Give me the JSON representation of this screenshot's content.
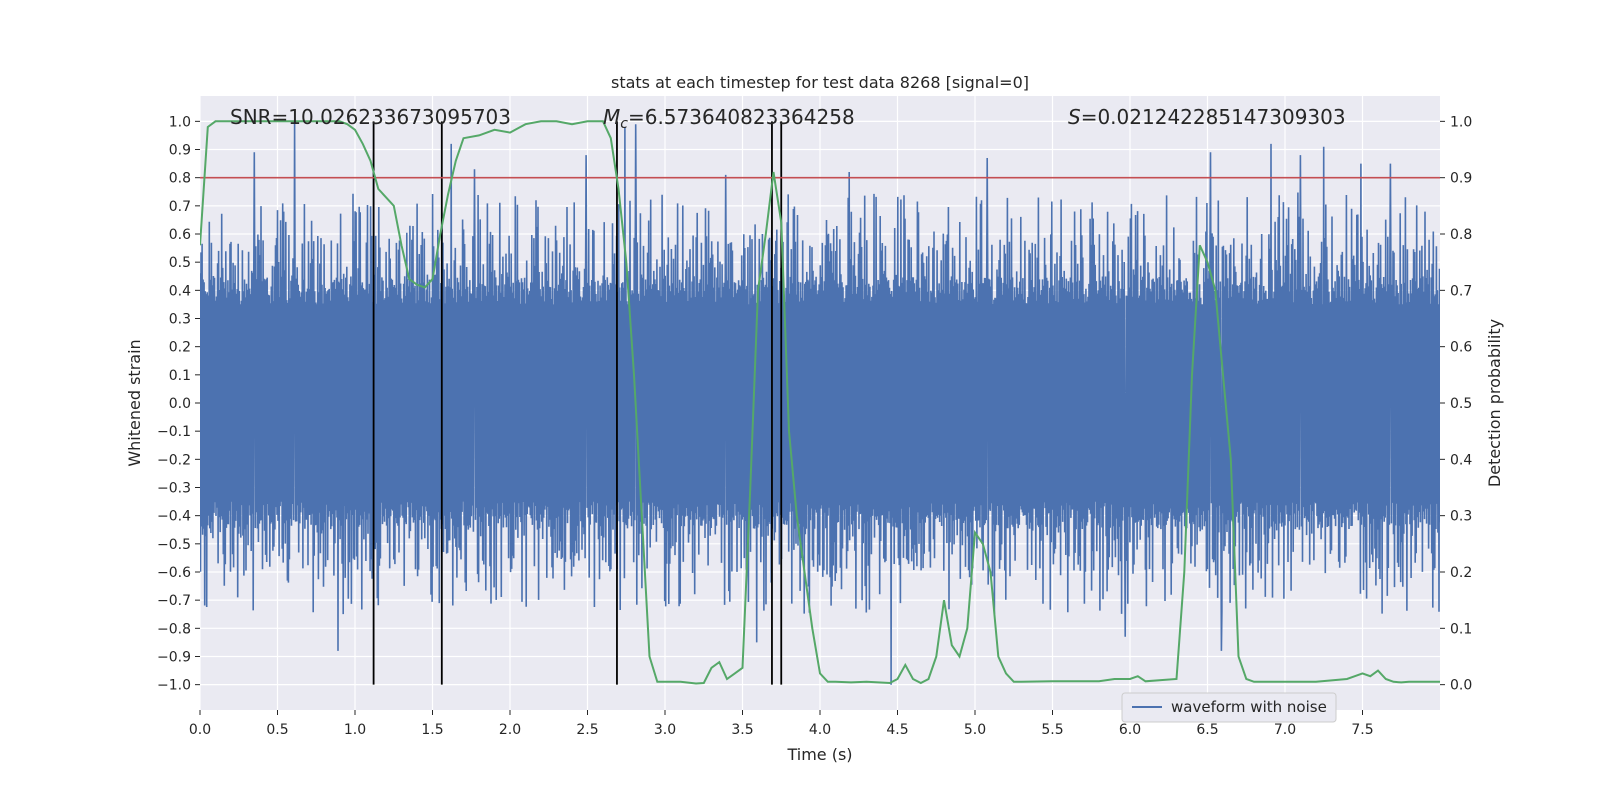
{
  "chart_data": {
    "type": "line",
    "title": "stats at each timestep for test data 8268 [signal=0]",
    "xlabel": "Time (s)",
    "ylabel_left": "Whitened strain",
    "ylabel_right": "Detection probability",
    "xlim": [
      0,
      8.0
    ],
    "ylim_left": [
      -1.09,
      1.09
    ],
    "ylim_right": [
      -0.045,
      1.045
    ],
    "x_ticks": [
      "0.0",
      "0.5",
      "1.0",
      "1.5",
      "2.0",
      "2.5",
      "3.0",
      "3.5",
      "4.0",
      "4.5",
      "5.0",
      "5.5",
      "6.0",
      "6.5",
      "7.0",
      "7.5"
    ],
    "y_ticks_left": [
      "1.0",
      "0.9",
      "0.8",
      "0.7",
      "0.6",
      "0.5",
      "0.4",
      "0.3",
      "0.2",
      "0.1",
      "0.0",
      "−0.1",
      "−0.2",
      "−0.3",
      "−0.4",
      "−0.5",
      "−0.6",
      "−0.7",
      "−0.8",
      "−0.9",
      "−1.0"
    ],
    "y_ticks_right": [
      "1.0",
      "0.9",
      "0.8",
      "0.7",
      "0.6",
      "0.5",
      "0.4",
      "0.3",
      "0.2",
      "0.1",
      "0.0"
    ],
    "annotations": {
      "snr": "SNR=10.026233673095703",
      "mc_symbol": "M",
      "mc_sub": "c",
      "mc_value": "=6.573640823364258",
      "s_symbol": "S",
      "s_value": "=0.021242285147309303"
    },
    "threshold_line": {
      "y_left": 0.8,
      "color": "#c44e52"
    },
    "vertical_lines_x": [
      1.12,
      1.56,
      2.69,
      3.69,
      3.75
    ],
    "legend": {
      "position": "lower-right",
      "entries": [
        "waveform with noise"
      ]
    },
    "grid": true,
    "series": [
      {
        "name": "waveform with noise",
        "color": "#4c72b0",
        "axis": "left",
        "style": "dense noise, envelope roughly ±0.4 with spikes up to ±1.0",
        "spikes": [
          {
            "x": 0.35,
            "y": 0.89
          },
          {
            "x": 0.61,
            "y": 1.0
          },
          {
            "x": 0.89,
            "y": -0.88
          },
          {
            "x": 1.12,
            "y": 0.89
          },
          {
            "x": 1.62,
            "y": 0.92
          },
          {
            "x": 1.77,
            "y": 0.83
          },
          {
            "x": 2.49,
            "y": 0.88
          },
          {
            "x": 2.74,
            "y": 0.98
          },
          {
            "x": 2.81,
            "y": 0.99
          },
          {
            "x": 3.39,
            "y": 0.81
          },
          {
            "x": 3.59,
            "y": -0.85
          },
          {
            "x": 4.19,
            "y": 0.82
          },
          {
            "x": 4.46,
            "y": -1.0
          },
          {
            "x": 5.08,
            "y": 0.87
          },
          {
            "x": 5.97,
            "y": -0.83
          },
          {
            "x": 6.52,
            "y": 0.89
          },
          {
            "x": 6.59,
            "y": -0.88
          },
          {
            "x": 6.91,
            "y": 0.92
          },
          {
            "x": 7.1,
            "y": 0.88
          },
          {
            "x": 7.25,
            "y": 0.91
          },
          {
            "x": 7.49,
            "y": 0.85
          },
          {
            "x": 7.68,
            "y": 0.85
          }
        ]
      },
      {
        "name": "",
        "color": "#55a868",
        "axis": "right",
        "x": [
          0.0,
          0.05,
          0.1,
          0.3,
          0.6,
          0.9,
          0.95,
          1.0,
          1.05,
          1.1,
          1.15,
          1.25,
          1.3,
          1.35,
          1.4,
          1.45,
          1.5,
          1.55,
          1.6,
          1.65,
          1.7,
          1.8,
          1.9,
          2.0,
          2.1,
          2.2,
          2.3,
          2.4,
          2.5,
          2.6,
          2.65,
          2.7,
          2.75,
          2.8,
          2.85,
          2.9,
          2.95,
          3.0,
          3.1,
          3.2,
          3.25,
          3.3,
          3.35,
          3.4,
          3.45,
          3.5,
          3.55,
          3.6,
          3.65,
          3.7,
          3.75,
          3.8,
          3.85,
          3.9,
          3.95,
          4.0,
          4.05,
          4.1,
          4.2,
          4.3,
          4.45,
          4.5,
          4.55,
          4.6,
          4.65,
          4.7,
          4.75,
          4.8,
          4.85,
          4.9,
          4.95,
          5.0,
          5.05,
          5.1,
          5.15,
          5.2,
          5.25,
          5.3,
          5.5,
          5.8,
          5.9,
          6.0,
          6.05,
          6.1,
          6.2,
          6.3,
          6.35,
          6.4,
          6.45,
          6.5,
          6.55,
          6.6,
          6.65,
          6.7,
          6.75,
          6.8,
          6.85,
          6.9,
          7.0,
          7.2,
          7.4,
          7.45,
          7.5,
          7.55,
          7.6,
          7.65,
          7.7,
          7.75,
          7.8,
          7.9,
          8.0
        ],
        "y": [
          0.78,
          0.99,
          1.0,
          1.0,
          1.0,
          1.0,
          0.995,
          0.985,
          0.96,
          0.93,
          0.88,
          0.85,
          0.78,
          0.72,
          0.71,
          0.705,
          0.72,
          0.8,
          0.87,
          0.93,
          0.97,
          0.975,
          0.985,
          0.98,
          0.995,
          1.0,
          1.0,
          0.995,
          1.0,
          1.0,
          0.97,
          0.88,
          0.75,
          0.55,
          0.3,
          0.05,
          0.005,
          0.005,
          0.005,
          0.002,
          0.003,
          0.03,
          0.04,
          0.01,
          0.02,
          0.03,
          0.35,
          0.7,
          0.8,
          0.91,
          0.82,
          0.45,
          0.3,
          0.2,
          0.1,
          0.02,
          0.005,
          0.005,
          0.004,
          0.005,
          0.003,
          0.01,
          0.035,
          0.01,
          0.003,
          0.01,
          0.05,
          0.15,
          0.07,
          0.05,
          0.1,
          0.27,
          0.25,
          0.2,
          0.05,
          0.02,
          0.005,
          0.005,
          0.006,
          0.006,
          0.01,
          0.01,
          0.015,
          0.006,
          0.008,
          0.01,
          0.2,
          0.55,
          0.78,
          0.75,
          0.7,
          0.55,
          0.4,
          0.05,
          0.01,
          0.005,
          0.005,
          0.005,
          0.005,
          0.005,
          0.01,
          0.015,
          0.02,
          0.015,
          0.025,
          0.01,
          0.005,
          0.004,
          0.005,
          0.005,
          0.005
        ]
      }
    ]
  }
}
